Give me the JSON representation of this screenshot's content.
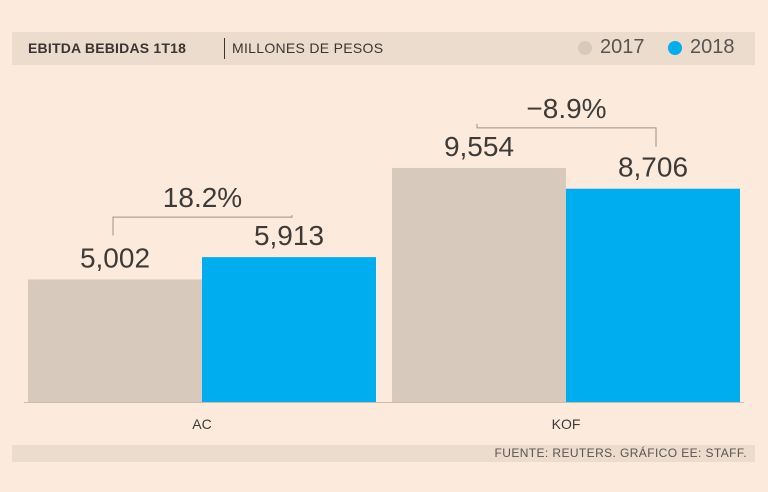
{
  "header": {
    "title": "EBITDA BEBIDAS 1T18",
    "subtitle": "MILLONES DE PESOS"
  },
  "legend": [
    {
      "label": "2017",
      "color": "#d7cabd"
    },
    {
      "label": "2018",
      "color": "#00aeef"
    }
  ],
  "footer": {
    "source": "FUENTE: REUTERS.   GRÁFICO EE: STAFF."
  },
  "chart_data": {
    "type": "bar",
    "title": "EBITDA BEBIDAS 1T18",
    "subtitle": "MILLONES DE PESOS",
    "categories": [
      "AC",
      "KOF"
    ],
    "series": [
      {
        "name": "2017",
        "values": [
          5002,
          9554
        ],
        "labels": [
          "5,002",
          "9,554"
        ],
        "color": "#d7cabd"
      },
      {
        "name": "2018",
        "values": [
          5913,
          8706
        ],
        "labels": [
          "5,913",
          "8,706"
        ],
        "color": "#00aeef"
      }
    ],
    "changes": [
      "18.2%",
      "−8.9%"
    ],
    "ylim": [
      0,
      10000
    ],
    "grid": false,
    "legend_position": "top-right"
  }
}
